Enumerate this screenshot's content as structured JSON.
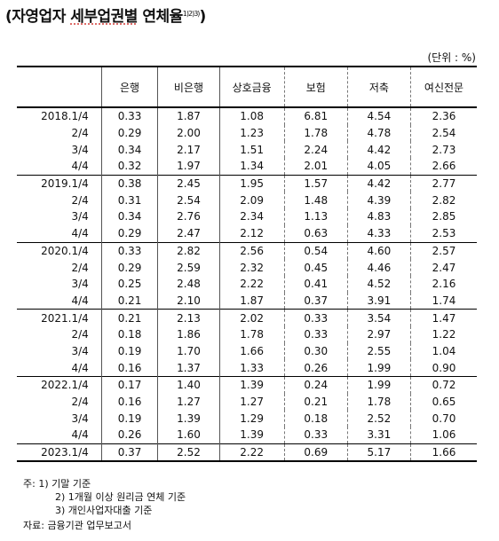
{
  "title": {
    "main": "(자영업자 ",
    "underlined": "세부업권별",
    "rest": " 연체율",
    "superscript": "1)2)3)",
    "close": ")"
  },
  "unit": "(단위 : %)",
  "headers": [
    "은행",
    "비은행",
    "상호금융",
    "보험",
    "저축",
    "여신전문"
  ],
  "rows": [
    {
      "period": "2018.1/4",
      "values": [
        "0.33",
        "1.87",
        "1.08",
        "6.81",
        "4.54",
        "2.36"
      ],
      "year_start": true
    },
    {
      "period": "2/4",
      "values": [
        "0.29",
        "2.00",
        "1.23",
        "1.78",
        "4.78",
        "2.54"
      ]
    },
    {
      "period": "3/4",
      "values": [
        "0.34",
        "2.17",
        "1.51",
        "2.24",
        "4.42",
        "2.73"
      ]
    },
    {
      "period": "4/4",
      "values": [
        "0.32",
        "1.97",
        "1.34",
        "2.01",
        "4.05",
        "2.66"
      ]
    },
    {
      "period": "2019.1/4",
      "values": [
        "0.38",
        "2.45",
        "1.95",
        "1.57",
        "4.42",
        "2.77"
      ],
      "year_start": true
    },
    {
      "period": "2/4",
      "values": [
        "0.31",
        "2.54",
        "2.09",
        "1.48",
        "4.39",
        "2.82"
      ]
    },
    {
      "period": "3/4",
      "values": [
        "0.34",
        "2.76",
        "2.34",
        "1.13",
        "4.83",
        "2.85"
      ]
    },
    {
      "period": "4/4",
      "values": [
        "0.29",
        "2.47",
        "2.12",
        "0.63",
        "4.33",
        "2.53"
      ]
    },
    {
      "period": "2020.1/4",
      "values": [
        "0.33",
        "2.82",
        "2.56",
        "0.54",
        "4.60",
        "2.57"
      ],
      "year_start": true
    },
    {
      "period": "2/4",
      "values": [
        "0.29",
        "2.59",
        "2.32",
        "0.45",
        "4.46",
        "2.47"
      ]
    },
    {
      "period": "3/4",
      "values": [
        "0.25",
        "2.48",
        "2.22",
        "0.41",
        "4.52",
        "2.16"
      ]
    },
    {
      "period": "4/4",
      "values": [
        "0.21",
        "2.10",
        "1.87",
        "0.37",
        "3.91",
        "1.74"
      ]
    },
    {
      "period": "2021.1/4",
      "values": [
        "0.21",
        "2.13",
        "2.02",
        "0.33",
        "3.54",
        "1.47"
      ],
      "year_start": true
    },
    {
      "period": "2/4",
      "values": [
        "0.18",
        "1.86",
        "1.78",
        "0.33",
        "2.97",
        "1.22"
      ]
    },
    {
      "period": "3/4",
      "values": [
        "0.19",
        "1.70",
        "1.66",
        "0.30",
        "2.55",
        "1.04"
      ]
    },
    {
      "period": "4/4",
      "values": [
        "0.16",
        "1.37",
        "1.33",
        "0.26",
        "1.99",
        "0.90"
      ]
    },
    {
      "period": "2022.1/4",
      "values": [
        "0.17",
        "1.40",
        "1.39",
        "0.24",
        "1.99",
        "0.72"
      ],
      "year_start": true
    },
    {
      "period": "2/4",
      "values": [
        "0.16",
        "1.27",
        "1.27",
        "0.21",
        "1.78",
        "0.65"
      ]
    },
    {
      "period": "3/4",
      "values": [
        "0.19",
        "1.39",
        "1.29",
        "0.18",
        "2.52",
        "0.70"
      ]
    },
    {
      "period": "4/4",
      "values": [
        "0.26",
        "1.60",
        "1.39",
        "0.33",
        "3.31",
        "1.06"
      ]
    },
    {
      "period": "2023.1/4",
      "values": [
        "0.37",
        "2.52",
        "2.22",
        "0.69",
        "5.17",
        "1.66"
      ],
      "year_start": true
    }
  ],
  "notes": {
    "prefix": "주: ",
    "items": [
      "1) 기말 기준",
      "2) 1개월 이상 원리금 연체 기준",
      "3) 개인사업자대출 기준"
    ]
  },
  "source": "자료: 금융기관 업무보고서"
}
